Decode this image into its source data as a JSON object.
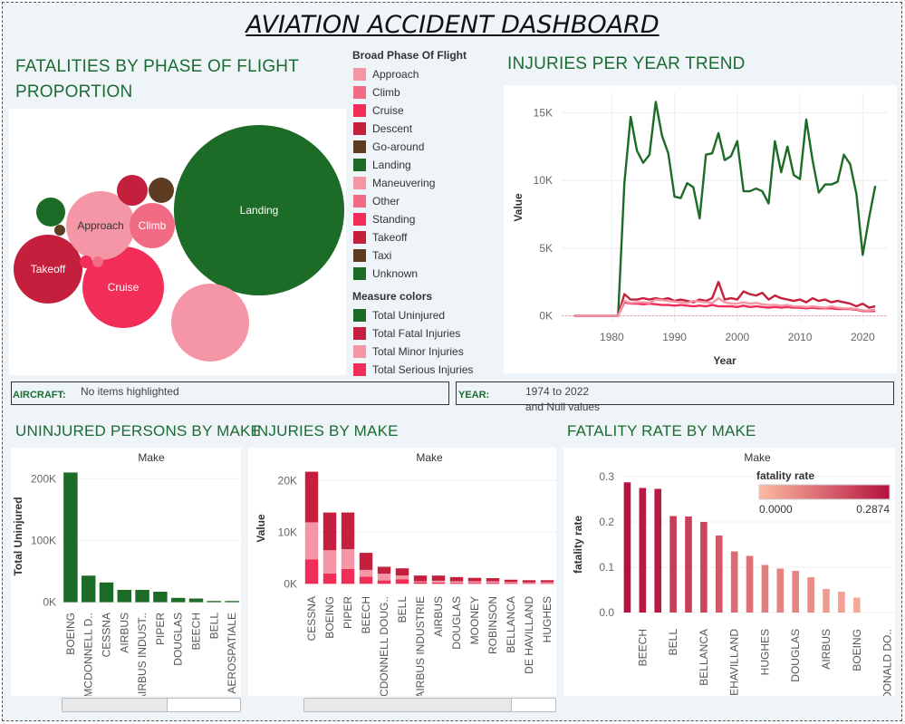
{
  "title": "AVIATION ACCIDENT DASHBOARD",
  "sections": {
    "phase": "FATALITIES BY PHASE OF FLIGHT PROPORTION",
    "trend": "INJURIES PER YEAR TREND",
    "uninjured": "UNINJURED PERSONS BY MAKE",
    "injuries": "INJURIES BY MAKE",
    "fatality": "FATALITY RATE BY MAKE"
  },
  "legend_phase": {
    "header": "Broad Phase Of Flight",
    "items": [
      {
        "label": "Approach",
        "color": "#f596a6"
      },
      {
        "label": "Climb",
        "color": "#f26b84"
      },
      {
        "label": "Cruise",
        "color": "#f22d57"
      },
      {
        "label": "Descent",
        "color": "#c4203d"
      },
      {
        "label": "Go-around",
        "color": "#5e3c22"
      },
      {
        "label": "Landing",
        "color": "#1c6b26"
      },
      {
        "label": "Maneuvering",
        "color": "#f596a6"
      },
      {
        "label": "Other",
        "color": "#f26b84"
      },
      {
        "label": "Standing",
        "color": "#f22d57"
      },
      {
        "label": "Takeoff",
        "color": "#c4203d"
      },
      {
        "label": "Taxi",
        "color": "#5e3c22"
      },
      {
        "label": "Unknown",
        "color": "#1c6b26"
      }
    ]
  },
  "legend_measure": {
    "header": "Measure colors",
    "items": [
      {
        "label": "Total Uninjured",
        "color": "#1c6b26"
      },
      {
        "label": "Total Fatal Injuries",
        "color": "#c4203d"
      },
      {
        "label": "Total Minor Injuries",
        "color": "#f596a6"
      },
      {
        "label": "Total Serious Injuries",
        "color": "#f22d57"
      }
    ]
  },
  "filters": {
    "aircraft_label": "AIRCRAFT:",
    "aircraft_value": "No items highlighted",
    "year_label": "YEAR:",
    "year_value_1": "1974 to 2022",
    "year_value_2": "and Null values"
  },
  "chart_data": [
    {
      "type": "bubble",
      "title": "FATALITIES BY PHASE OF FLIGHT PROPORTION",
      "bubbles": [
        {
          "label": "Landing",
          "color": "#1c6b26",
          "show_label": true
        },
        {
          "label": "Cruise",
          "color": "#f22d57",
          "show_label": true
        },
        {
          "label": "Takeoff",
          "color": "#c4203d",
          "show_label": true
        },
        {
          "label": "Approach",
          "color": "#f596a6",
          "show_label": true
        },
        {
          "label": "Climb",
          "color": "#f26b84",
          "show_label": true
        },
        {
          "label": "Maneuvering",
          "color": "#f596a6",
          "show_label": false
        },
        {
          "label": "Descent",
          "color": "#c4203d",
          "show_label": false
        },
        {
          "label": "Go-around",
          "color": "#5e3c22",
          "show_label": false
        },
        {
          "label": "Unknown",
          "color": "#1c6b26",
          "show_label": false
        },
        {
          "label": "Standing",
          "color": "#f22d57",
          "show_label": false
        },
        {
          "label": "Other",
          "color": "#f26b84",
          "show_label": false
        },
        {
          "label": "Taxi",
          "color": "#5e3c22",
          "show_label": false
        }
      ]
    },
    {
      "type": "line",
      "title": "INJURIES PER YEAR TREND",
      "xlabel": "Year",
      "ylabel": "Value",
      "xlim": [
        1972,
        2024
      ],
      "ylim": [
        -500,
        16500
      ],
      "xticks": [
        1980,
        1990,
        2000,
        2010,
        2020
      ],
      "yticks": [
        {
          "v": 0,
          "label": "0K"
        },
        {
          "v": 5000,
          "label": "5K"
        },
        {
          "v": 10000,
          "label": "10K"
        },
        {
          "v": 15000,
          "label": "15K"
        }
      ],
      "x": [
        1974,
        1977,
        1979,
        1981,
        1982,
        1983,
        1984,
        1985,
        1986,
        1987,
        1988,
        1989,
        1990,
        1991,
        1992,
        1993,
        1994,
        1995,
        1996,
        1997,
        1998,
        1999,
        2000,
        2001,
        2002,
        2003,
        2004,
        2005,
        2006,
        2007,
        2008,
        2009,
        2010,
        2011,
        2012,
        2013,
        2014,
        2015,
        2016,
        2017,
        2018,
        2019,
        2020,
        2021,
        2022
      ],
      "series": [
        {
          "name": "Total Uninjured",
          "color": "#1c6b26",
          "values": [
            0,
            0,
            0,
            0,
            9800,
            14700,
            12200,
            11300,
            11900,
            15800,
            13300,
            12000,
            8800,
            8700,
            9800,
            9500,
            7200,
            11900,
            12000,
            13500,
            11500,
            11800,
            12900,
            9200,
            9200,
            9400,
            9200,
            8300,
            12900,
            10600,
            12500,
            10400,
            10100,
            14500,
            11500,
            9100,
            9700,
            9700,
            9900,
            11900,
            11200,
            9000,
            4500,
            7200,
            9600
          ]
        },
        {
          "name": "Total Fatal Injuries",
          "color": "#c4203d",
          "values": [
            0,
            0,
            0,
            0,
            1600,
            1200,
            1200,
            1300,
            1200,
            1300,
            1200,
            1300,
            1100,
            1200,
            1100,
            1000,
            1200,
            1100,
            1300,
            2500,
            1200,
            1300,
            1200,
            1800,
            1600,
            1500,
            1700,
            1200,
            1500,
            1300,
            1200,
            1100,
            1200,
            1000,
            1300,
            1100,
            1200,
            1000,
            1100,
            1000,
            900,
            700,
            900,
            600,
            700
          ]
        },
        {
          "name": "Total Serious Injuries",
          "color": "#f22d57",
          "values": [
            0,
            0,
            0,
            0,
            1000,
            900,
            900,
            850,
            900,
            850,
            800,
            800,
            750,
            800,
            750,
            700,
            750,
            700,
            800,
            700,
            700,
            700,
            650,
            750,
            650,
            700,
            650,
            600,
            650,
            600,
            650,
            600,
            600,
            550,
            600,
            550,
            550,
            550,
            500,
            500,
            500,
            450,
            350,
            350,
            350
          ]
        },
        {
          "name": "Total Minor Injuries",
          "color": "#f596a6",
          "values": [
            0,
            0,
            0,
            0,
            1100,
            950,
            1000,
            1000,
            950,
            1200,
            1150,
            1100,
            1050,
            1000,
            950,
            1100,
            1050,
            1000,
            950,
            1300,
            1000,
            900,
            900,
            1000,
            900,
            950,
            850,
            800,
            800,
            750,
            800,
            700,
            700,
            650,
            700,
            650,
            600,
            700,
            600,
            550,
            550,
            500,
            400,
            400,
            450
          ]
        }
      ]
    },
    {
      "type": "bar",
      "title": "UNINJURED PERSONS BY MAKE",
      "header": "Make",
      "ylabel": "Total Uninjured",
      "ylim": [
        -5000,
        218000
      ],
      "yticks": [
        {
          "v": 0,
          "label": "0K"
        },
        {
          "v": 100000,
          "label": "100K"
        },
        {
          "v": 200000,
          "label": "200K"
        }
      ],
      "categories": [
        "BOEING",
        "MCDONNELL D..",
        "CESSNA",
        "AIRBUS",
        "AIRBUS INDUST..",
        "PIPER",
        "DOUGLAS",
        "BEECH",
        "BELL",
        "AEROSPATIALE"
      ],
      "values": [
        210000,
        43000,
        32000,
        20000,
        20000,
        17000,
        7000,
        6000,
        2000,
        2000
      ],
      "color": "#1c6b26"
    },
    {
      "type": "stacked_bar",
      "title": "INJURIES BY MAKE",
      "header": "Make",
      "ylabel": "Value",
      "ylim": [
        -1000,
        22500
      ],
      "yticks": [
        {
          "v": 0,
          "label": "0K"
        },
        {
          "v": 10000,
          "label": "10K"
        },
        {
          "v": 20000,
          "label": "20K"
        }
      ],
      "categories": [
        "CESSNA",
        "BOEING",
        "PIPER",
        "BEECH",
        "MCDONNELL DOUG..",
        "BELL",
        "AIRBUS INDUSTRIE",
        "AIRBUS",
        "DOUGLAS",
        "MOONEY",
        "ROBINSON",
        "BELLANCA",
        "DE HAVILLAND",
        "HUGHES"
      ],
      "series": [
        {
          "name": "Total Serious Injuries",
          "color": "#f22d57",
          "values": [
            4700,
            2000,
            2900,
            1400,
            650,
            900,
            300,
            250,
            200,
            200,
            200,
            150,
            120,
            120
          ]
        },
        {
          "name": "Total Minor Injuries",
          "color": "#f596a6",
          "values": [
            7200,
            4500,
            3800,
            1300,
            1300,
            700,
            200,
            350,
            300,
            300,
            300,
            200,
            150,
            200
          ]
        },
        {
          "name": "Total Fatal Injuries",
          "color": "#c4203d",
          "values": [
            9800,
            7300,
            7100,
            3300,
            1350,
            1400,
            1100,
            1000,
            800,
            650,
            600,
            450,
            430,
            380
          ]
        }
      ]
    },
    {
      "type": "bar",
      "title": "FATALITY RATE BY MAKE",
      "header": "Make",
      "ylabel": "fatality rate",
      "ylim": [
        -0.02,
        0.32
      ],
      "yticks": [
        {
          "v": 0.0,
          "label": "0.0"
        },
        {
          "v": 0.1,
          "label": "0.1"
        },
        {
          "v": 0.2,
          "label": "0.2"
        },
        {
          "v": 0.3,
          "label": "0.3"
        }
      ],
      "categories": [
        "",
        "BEECH",
        "",
        "BELL",
        "",
        "BELLANCA",
        "",
        "DEHAVILLAND",
        "",
        "HUGHES",
        "",
        "DOUGLAS",
        "",
        "AIRBUS",
        "",
        "BOEING",
        "",
        "MCDONALD DO.."
      ],
      "values": [
        0.2874,
        0.275,
        0.273,
        0.213,
        0.212,
        0.2,
        0.17,
        0.135,
        0.125,
        0.105,
        0.097,
        0.092,
        0.078,
        0.052,
        0.046,
        0.033,
        0.0,
        0.0
      ],
      "color_legend": {
        "title": "fatality rate",
        "min_label": "0.0000",
        "max_label": "0.2874",
        "min_color": "#fcbba1",
        "max_color": "#b5123f"
      }
    }
  ]
}
